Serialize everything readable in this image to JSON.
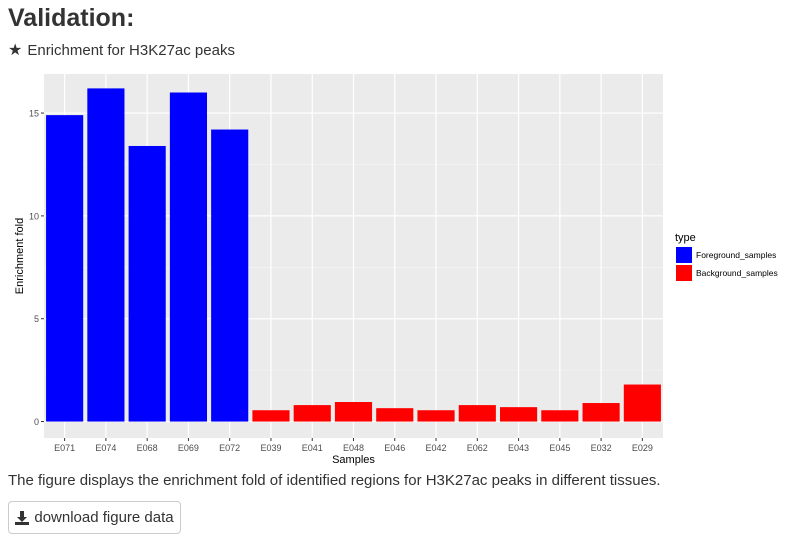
{
  "header": {
    "title": "Validation:",
    "subtitle_icon": "star-icon",
    "subtitle": "Enrichment for H3K27ac peaks"
  },
  "caption": "The figure displays the enrichment fold of identified regions for H3K27ac peaks in different tissues.",
  "download": {
    "icon": "download-icon",
    "label": "download figure data"
  },
  "chart_data": {
    "type": "bar",
    "categories": [
      "E071",
      "E074",
      "E068",
      "E069",
      "E072",
      "E039",
      "E041",
      "E048",
      "E046",
      "E042",
      "E062",
      "E043",
      "E045",
      "E032",
      "E029"
    ],
    "values": [
      14.9,
      16.2,
      13.4,
      16.0,
      14.2,
      0.55,
      0.8,
      0.95,
      0.65,
      0.55,
      0.8,
      0.7,
      0.55,
      0.9,
      1.8
    ],
    "groups": [
      "Foreground_samples",
      "Foreground_samples",
      "Foreground_samples",
      "Foreground_samples",
      "Foreground_samples",
      "Background_samples",
      "Background_samples",
      "Background_samples",
      "Background_samples",
      "Background_samples",
      "Background_samples",
      "Background_samples",
      "Background_samples",
      "Background_samples",
      "Background_samples"
    ],
    "xlabel": "Samples",
    "ylabel": "Enrichment fold",
    "ylim": [
      -0.8,
      16.9
    ],
    "yticks": [
      0,
      5,
      10,
      15
    ],
    "grid": true,
    "legend": {
      "title": "type",
      "placement": "right",
      "entries": [
        {
          "name": "Foreground_samples",
          "color": "#0000ff"
        },
        {
          "name": "Background_samples",
          "color": "#ff0000"
        }
      ]
    },
    "colors": {
      "Foreground_samples": "#0000ff",
      "Background_samples": "#ff0000",
      "panel": "#ebebeb"
    }
  }
}
